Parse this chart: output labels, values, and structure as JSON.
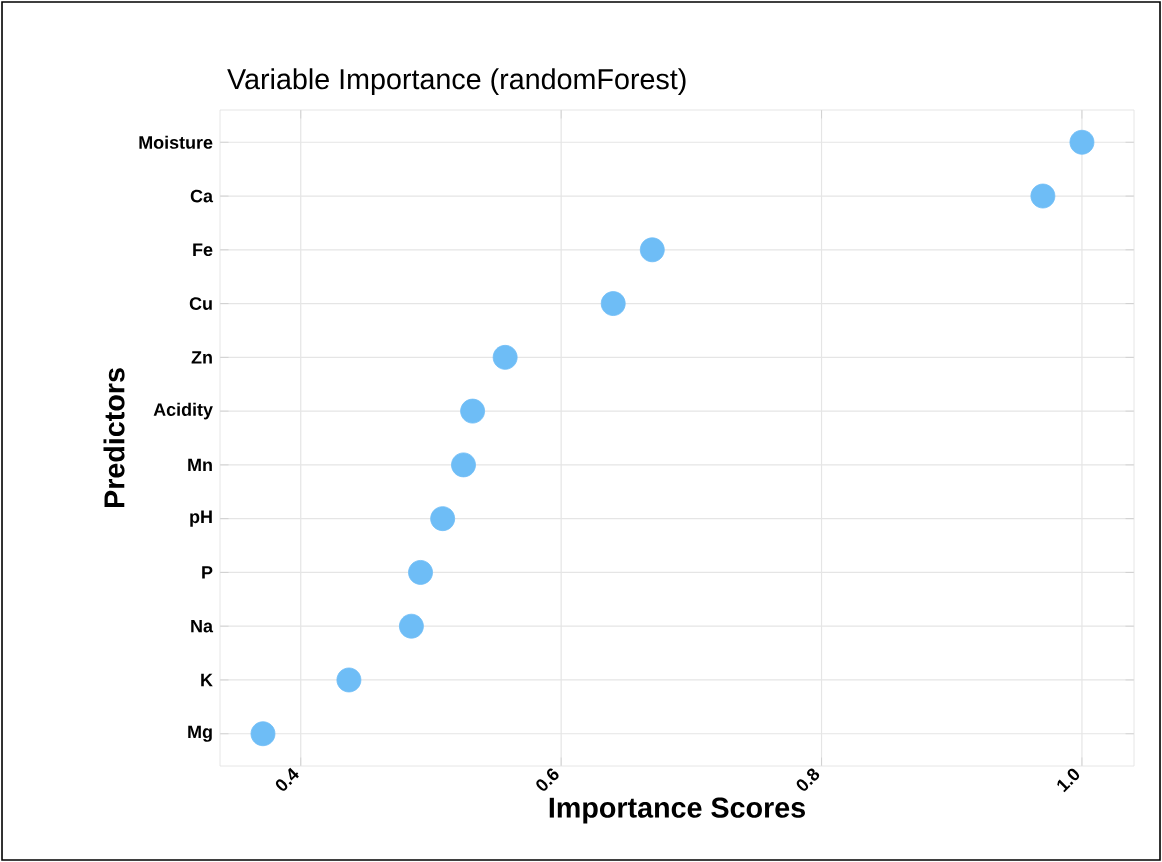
{
  "chart_data": {
    "type": "scatter",
    "title": "Variable Importance (randomForest)",
    "xlabel": "Importance Scores",
    "ylabel": "Predictors",
    "orientation": "horizontal",
    "categories": [
      "Moisture",
      "Ca",
      "Fe",
      "Cu",
      "Zn",
      "Acidity",
      "Mn",
      "pH",
      "P",
      "Na",
      "K",
      "Mg"
    ],
    "values": [
      1.0,
      0.97,
      0.67,
      0.64,
      0.557,
      0.532,
      0.525,
      0.509,
      0.492,
      0.485,
      0.437,
      0.371
    ],
    "color": "#6ebdf6",
    "marker": "circle",
    "grid": true,
    "xlim": [
      0.338,
      1.04
    ],
    "xticks": [
      0.4,
      0.6,
      0.8,
      {
        "value": 1.0,
        "label": "1.0"
      }
    ]
  }
}
